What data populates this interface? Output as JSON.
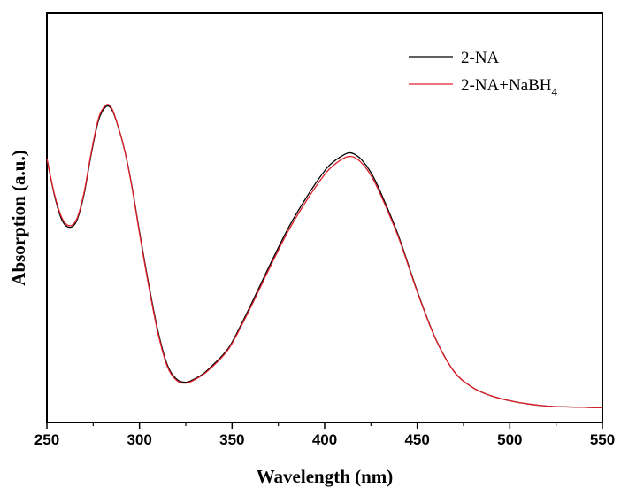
{
  "chart_data": {
    "type": "line",
    "xlabel": "Wavelength (nm)",
    "ylabel": "Absorption (a.u.)",
    "xlim": [
      250,
      550
    ],
    "ylim": [
      0,
      1
    ],
    "x_ticks": [
      250,
      300,
      350,
      400,
      450,
      500,
      550
    ],
    "y_ticks_labeled": false,
    "grid": false,
    "legend": {
      "placement": "top-right"
    },
    "series": [
      {
        "name": "2-NA",
        "color": "#000000",
        "x": [
          250,
          254,
          258,
          262,
          266,
          270,
          274,
          278,
          282,
          285,
          288,
          292,
          296,
          300,
          305,
          310,
          315,
          320,
          325,
          330,
          335,
          340,
          345,
          350,
          360,
          370,
          380,
          390,
          400,
          405,
          410,
          413,
          416,
          420,
          425,
          430,
          440,
          450,
          460,
          470,
          480,
          490,
          500,
          510,
          520,
          530,
          540,
          550
        ],
        "y": [
          0.645,
          0.556,
          0.496,
          0.477,
          0.492,
          0.557,
          0.657,
          0.74,
          0.772,
          0.765,
          0.73,
          0.665,
          0.575,
          0.466,
          0.338,
          0.223,
          0.141,
          0.106,
          0.098,
          0.107,
          0.121,
          0.142,
          0.165,
          0.196,
          0.286,
          0.381,
          0.472,
          0.549,
          0.615,
          0.638,
          0.653,
          0.659,
          0.656,
          0.642,
          0.611,
          0.565,
          0.455,
          0.321,
          0.204,
          0.124,
          0.085,
          0.065,
          0.053,
          0.045,
          0.04,
          0.038,
          0.037,
          0.036
        ]
      },
      {
        "name": "2-NA+NaBH4",
        "color": "#e0202a",
        "x": [
          250,
          254,
          258,
          262,
          266,
          270,
          274,
          278,
          282,
          285,
          288,
          292,
          296,
          300,
          305,
          310,
          315,
          320,
          325,
          330,
          335,
          340,
          345,
          350,
          360,
          370,
          380,
          390,
          400,
          405,
          410,
          413,
          416,
          420,
          425,
          430,
          440,
          450,
          460,
          470,
          480,
          490,
          500,
          510,
          520,
          530,
          540,
          550
        ],
        "y": [
          0.645,
          0.559,
          0.501,
          0.481,
          0.496,
          0.561,
          0.661,
          0.745,
          0.776,
          0.768,
          0.731,
          0.665,
          0.573,
          0.462,
          0.333,
          0.218,
          0.137,
          0.103,
          0.096,
          0.105,
          0.119,
          0.139,
          0.162,
          0.193,
          0.281,
          0.375,
          0.465,
          0.541,
          0.606,
          0.629,
          0.645,
          0.65,
          0.648,
          0.634,
          0.604,
          0.559,
          0.451,
          0.319,
          0.203,
          0.124,
          0.085,
          0.065,
          0.053,
          0.045,
          0.04,
          0.038,
          0.037,
          0.036
        ]
      }
    ]
  }
}
